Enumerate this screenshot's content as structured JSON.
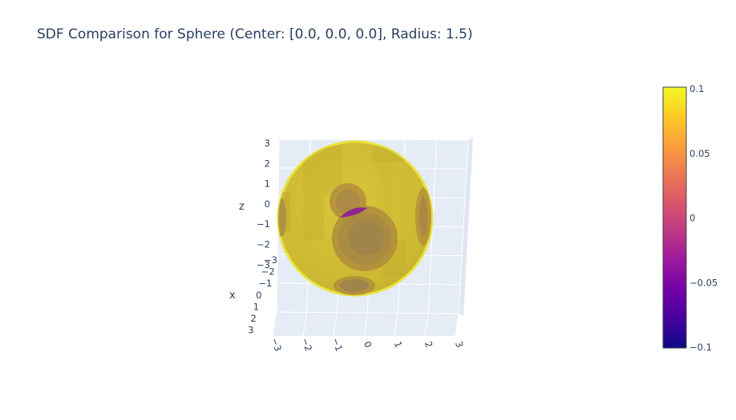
{
  "title": "SDF Comparison for Sphere (Center: [0.0, 0.0, 0.0], Radius: 1.5)",
  "chart_data": {
    "type": "isosurface",
    "title": "SDF Comparison for Sphere (Center: [0.0, 0.0, 0.0], Radius: 1.5)",
    "sphere": {
      "center": [
        0.0,
        0.0,
        0.0
      ],
      "radius": 1.5
    },
    "axes": {
      "x": {
        "label": "x",
        "range": [
          -3,
          3
        ],
        "ticks": [
          "−3",
          "−2",
          "−1",
          "0",
          "1",
          "2",
          "3"
        ]
      },
      "y": {
        "label": "",
        "range": [
          -3,
          3
        ],
        "ticks": [
          "−3",
          "−2",
          "−1",
          "0",
          "1",
          "2",
          "3"
        ]
      },
      "z": {
        "label": "z",
        "range": [
          -3,
          3
        ],
        "ticks": [
          "3",
          "2",
          "1",
          "0",
          "−1",
          "−2",
          "−3"
        ]
      }
    },
    "grid": true,
    "colorbar": {
      "range": [
        -0.1,
        0.1
      ],
      "ticks": [
        "0.1",
        "0.05",
        "0",
        "−0.05",
        "−0.1"
      ],
      "colorscale": [
        "#0d0887",
        "#46039f",
        "#7201a8",
        "#9c179e",
        "#bd3786",
        "#d8576b",
        "#ed7953",
        "#fb9f3a",
        "#fdca26",
        "#f0f921"
      ],
      "placement": "right"
    },
    "colors": {
      "surface": "#d4c132",
      "rim": "#e8e43c",
      "patch": "#a8894a",
      "inner": "#8c1a9e",
      "scene_bg": "#e5ecf6"
    }
  }
}
